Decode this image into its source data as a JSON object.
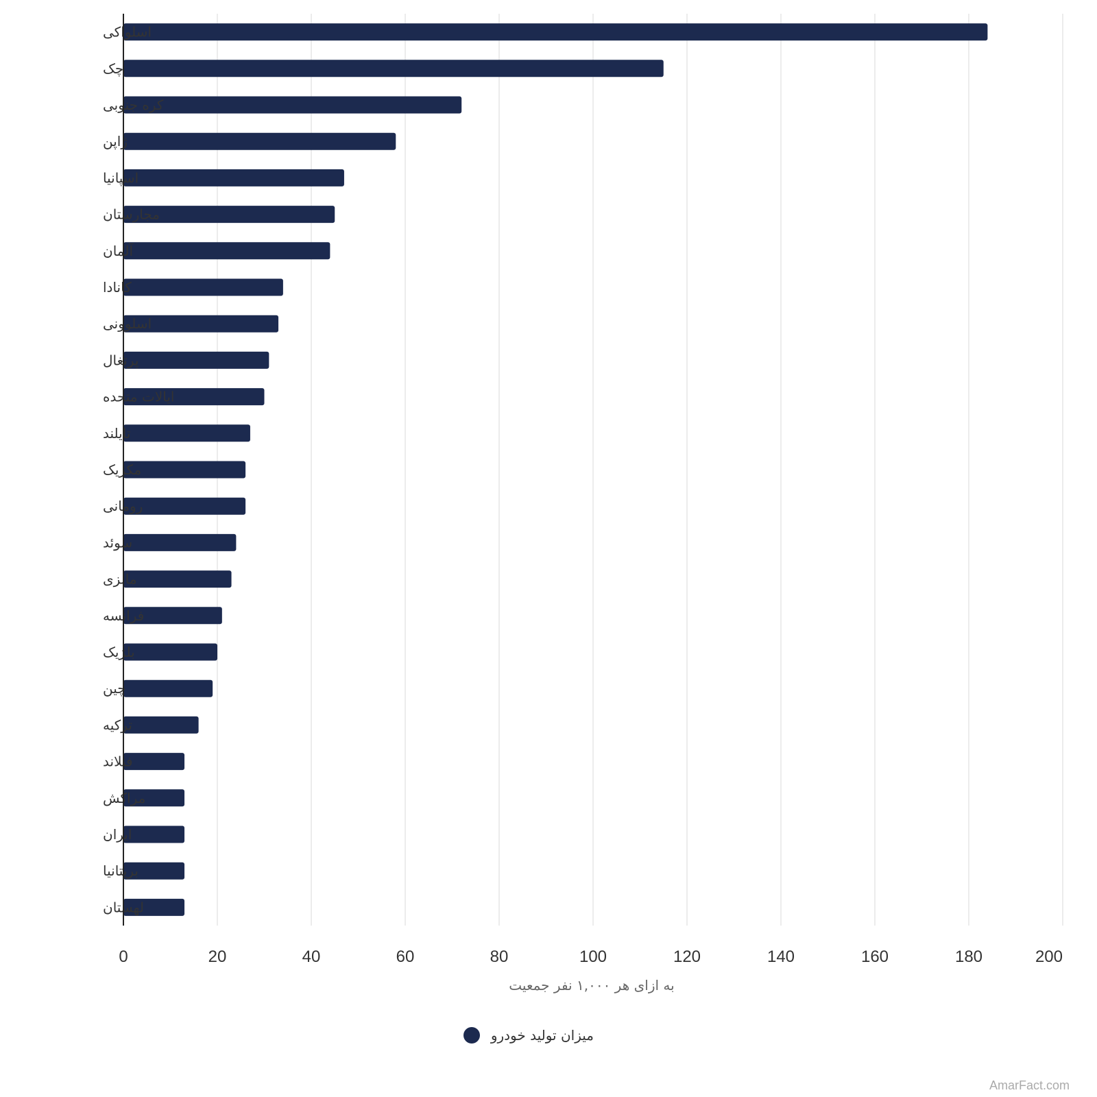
{
  "chart_data": {
    "type": "bar",
    "orientation": "horizontal",
    "categories": [
      "اسلواکی",
      "چک",
      "کره جنوبی",
      "ژاپن",
      "اسپانیا",
      "مجارستان",
      "آلمان",
      "کانادا",
      "اسلوونی",
      "پرتغال",
      "ایالات متحده",
      "تایلند",
      "مکزیک",
      "رومانی",
      "سوئد",
      "مالزی",
      "فرانسه",
      "بلژیک",
      "چین",
      "ترکیه",
      "فنلاند",
      "مراکش",
      "ایران",
      "بریتانیا",
      "لهستان"
    ],
    "series": [
      {
        "name": "میزان تولید خودرو",
        "values": [
          184,
          115,
          72,
          58,
          47,
          45,
          44,
          34,
          33,
          31,
          30,
          27,
          26,
          26,
          24,
          23,
          21,
          20,
          19,
          16,
          13,
          13,
          13,
          13,
          13
        ]
      }
    ],
    "xlabel": "به ازای هر ۱,۰۰۰ نفر جمعیت",
    "ylabel": "",
    "xlim": [
      0,
      200
    ],
    "xticks": [
      0,
      20,
      40,
      60,
      80,
      100,
      120,
      140,
      160,
      180,
      200
    ],
    "grid": "vertical",
    "legend": "bottom-center",
    "colors": {
      "bar": "#1c2a4f",
      "grid": "#e6e6e6",
      "axis": "#222222"
    }
  },
  "credit": "AmarFact.com"
}
